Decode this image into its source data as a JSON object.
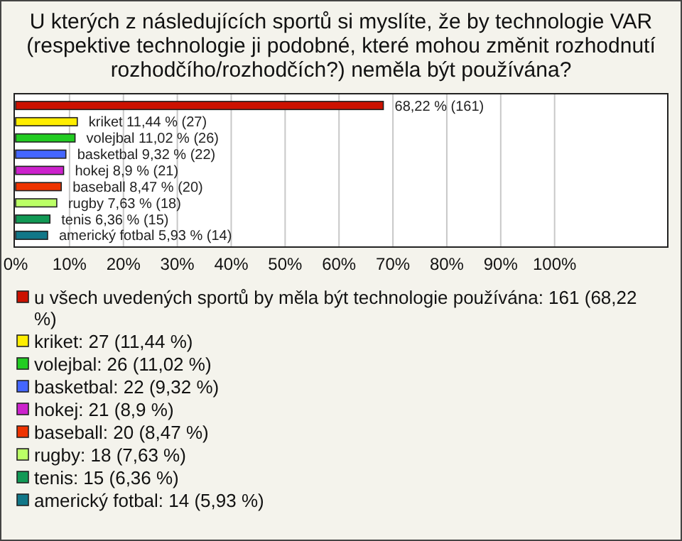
{
  "chart_data": {
    "type": "bar",
    "orientation": "horizontal",
    "title": "U kterých z následujících sportů si myslíte, že by technologie VAR (respektive technologie ji podobné, které mohou změnit rozhodnutí rozhodčího/rozhodčích?) neměla být používána?",
    "categories": [
      null,
      null,
      null,
      null,
      null,
      null,
      null,
      null,
      null
    ],
    "values": [
      68.22,
      11.44,
      11.02,
      9.32,
      8.9,
      8.47,
      7.63,
      6.36,
      5.93
    ],
    "colors": [
      "#cc1100",
      "#ffee00",
      "#22cc22",
      "#4466ff",
      "#cc22cc",
      "#ee3300",
      "#bbff66",
      "#119955",
      "#117788"
    ],
    "value_labels": [
      "68,22 % (161)",
      "kriket 11,44 % (27)",
      "volejbal 11,02 % (26)",
      "basketbal 9,32 % (22)",
      "hokej 8,9 % (21)",
      "baseball 8,47 % (20)",
      "rugby 7,63 % (18)",
      "tenis 6,36 % (15)",
      "americký fotbal 5,93 % (14)"
    ],
    "xlim": [
      0,
      121
    ],
    "xticks": [
      {
        "value": 0,
        "label": "0%"
      },
      {
        "value": 10,
        "label": "10%"
      },
      {
        "value": 20,
        "label": "20%"
      },
      {
        "value": 30,
        "label": "30%"
      },
      {
        "value": 40,
        "label": "40%"
      },
      {
        "value": 50,
        "label": "50%"
      },
      {
        "value": 60,
        "label": "60%"
      },
      {
        "value": 70,
        "label": "70%"
      },
      {
        "value": 80,
        "label": "80%"
      },
      {
        "value": 90,
        "label": "90%"
      },
      {
        "value": 100,
        "label": "100%"
      }
    ],
    "grid": "x",
    "tick_labels": "x",
    "annotations": [
      "u všech uvedených sportů by měla být technologie používána: 161 (68,22 %)",
      "kriket: 27 (11,44 %)",
      "volejbal: 26 (11,02 %)",
      "basketbal: 22 (9,32 %)",
      "hokej: 21 (8,9 %)",
      "baseball: 20 (8,47 %)",
      "rugby: 18 (7,63 %)",
      "tenis: 15 (6,36 %)",
      "americký fotbal: 14 (5,93 %)"
    ]
  }
}
